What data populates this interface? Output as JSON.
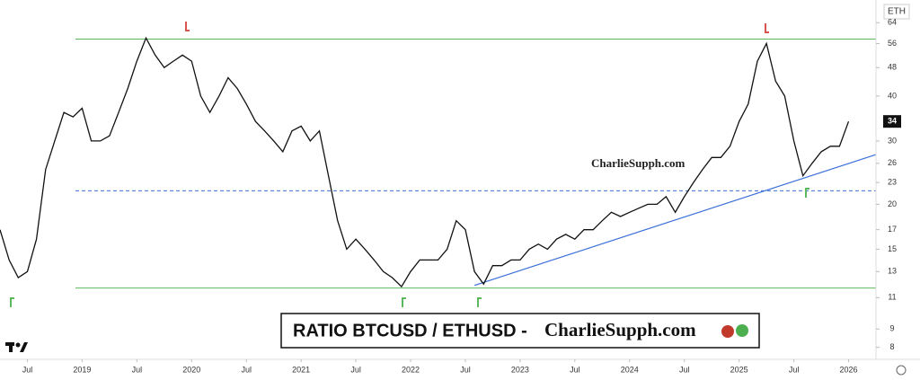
{
  "chart_data": {
    "type": "line",
    "currency": "ETH",
    "x": [
      "2018-04",
      "2018-05",
      "2018-06",
      "2018-07",
      "2018-08",
      "2018-09",
      "2018-10",
      "2018-11",
      "2018-12",
      "2019-01",
      "2019-02",
      "2019-03",
      "2019-04",
      "2019-05",
      "2019-06",
      "2019-07",
      "2019-08",
      "2019-09",
      "2019-10",
      "2019-11",
      "2019-12",
      "2020-01",
      "2020-02",
      "2020-03",
      "2020-04",
      "2020-05",
      "2020-06",
      "2020-07",
      "2020-08",
      "2020-09",
      "2020-10",
      "2020-11",
      "2020-12",
      "2021-01",
      "2021-02",
      "2021-03",
      "2021-04",
      "2021-05",
      "2021-06",
      "2021-07",
      "2021-08",
      "2021-09",
      "2021-10",
      "2021-11",
      "2021-12",
      "2022-01",
      "2022-02",
      "2022-03",
      "2022-04",
      "2022-05",
      "2022-06",
      "2022-07",
      "2022-08",
      "2022-09",
      "2022-10",
      "2022-11",
      "2022-12",
      "2023-01",
      "2023-02",
      "2023-03",
      "2023-04",
      "2023-05",
      "2023-06",
      "2023-07",
      "2023-08",
      "2023-09",
      "2023-10",
      "2023-11",
      "2023-12",
      "2024-01",
      "2024-02",
      "2024-03",
      "2024-04",
      "2024-05",
      "2024-06",
      "2024-07",
      "2024-08",
      "2024-09",
      "2024-10",
      "2024-11",
      "2024-12",
      "2025-01",
      "2025-02",
      "2025-03",
      "2025-04",
      "2025-05",
      "2025-06",
      "2025-07",
      "2025-08",
      "2025-09",
      "2025-10",
      "2025-11",
      "2025-12",
      "2026-01"
    ],
    "series": [
      {
        "name": "BTCUSD / ETHUSD",
        "color": "#111111",
        "values": [
          17,
          14,
          12.5,
          13,
          16,
          25,
          30,
          36,
          35,
          37,
          30,
          30,
          31,
          36,
          42,
          50,
          58,
          52,
          48,
          50,
          52,
          50,
          40,
          36,
          40,
          45,
          42,
          38,
          34,
          32,
          30,
          28,
          32,
          33,
          30,
          32,
          24,
          18,
          15,
          16,
          15,
          14,
          13,
          12.5,
          11.8,
          13,
          14,
          14,
          14,
          15,
          18,
          17,
          13,
          12,
          13.5,
          13.5,
          14,
          14,
          15,
          15.5,
          15,
          16,
          16.5,
          16,
          17,
          17,
          18,
          19,
          18.5,
          19,
          19.5,
          20,
          20,
          21,
          19,
          21,
          23,
          25,
          27,
          27,
          29,
          34,
          38,
          50,
          56,
          44,
          40,
          30,
          24,
          26,
          28,
          29,
          29,
          34
        ]
      }
    ],
    "xlim": [
      "2018-04",
      "2026-04"
    ],
    "xticks": [
      {
        "value": "2018-07",
        "label": "Jul"
      },
      {
        "value": "2019-01",
        "label": "2019"
      },
      {
        "value": "2019-07",
        "label": "Jul"
      },
      {
        "value": "2020-01",
        "label": "2020"
      },
      {
        "value": "2020-07",
        "label": "Jul"
      },
      {
        "value": "2021-01",
        "label": "2021"
      },
      {
        "value": "2021-07",
        "label": "Jul"
      },
      {
        "value": "2022-01",
        "label": "2022"
      },
      {
        "value": "2022-07",
        "label": "Jul"
      },
      {
        "value": "2023-01",
        "label": "2023"
      },
      {
        "value": "2023-07",
        "label": "Jul"
      },
      {
        "value": "2024-01",
        "label": "2024"
      },
      {
        "value": "2024-07",
        "label": "Jul"
      },
      {
        "value": "2025-01",
        "label": "2025"
      },
      {
        "value": "2025-07",
        "label": "Jul"
      },
      {
        "value": "2026-01",
        "label": "2026"
      }
    ],
    "ylim": [
      7.2,
      74
    ],
    "log_scale": true,
    "yticks": [
      8,
      9,
      11,
      13,
      15,
      17,
      20,
      23,
      26,
      30,
      40,
      48,
      56,
      64
    ],
    "current_price": 34,
    "hlines": [
      {
        "value": 57.6,
        "color": "#5cb85c",
        "style": "solid"
      },
      {
        "value": 11.7,
        "color": "#5cb85c",
        "style": "solid"
      },
      {
        "value": 21.8,
        "color": "#3a6fd8",
        "style": "dashed"
      }
    ],
    "trendline": {
      "x": [
        "2022-08",
        "2026-04"
      ],
      "y": [
        11.9,
        27.5
      ],
      "color": "#3a6fd8"
    },
    "banner": {
      "text_left": "RATIO BTCUSD / ETHUSD -",
      "text_right": "CharlieSupph.com"
    },
    "watermark": "CharlieSupph.com"
  }
}
